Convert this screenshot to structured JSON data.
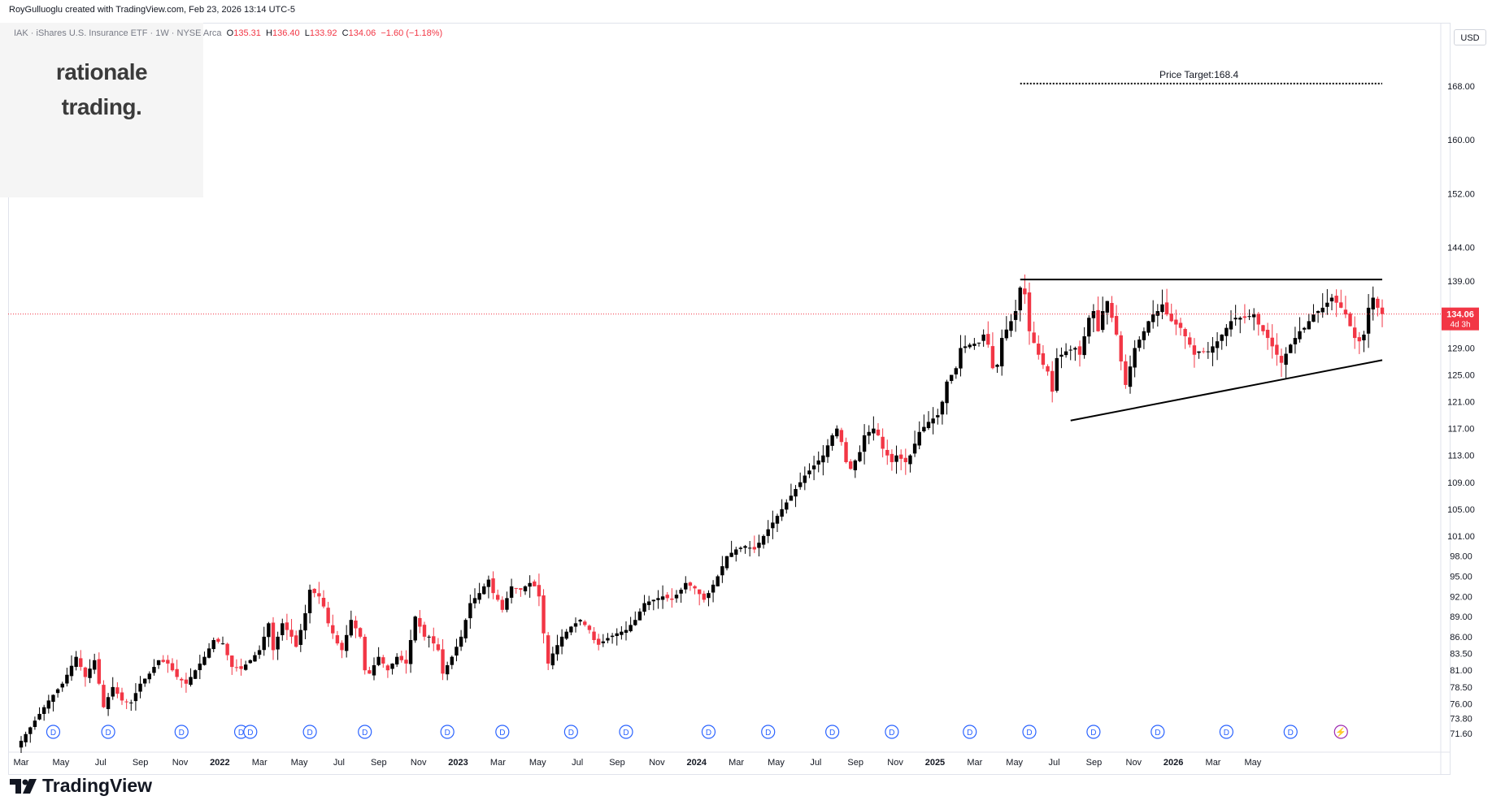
{
  "header": {
    "caption": "RoyGulluoglu created with TradingView.com, Feb 23, 2026 13:14 UTC-5"
  },
  "legend": {
    "symbol": "IAK · iShares U.S. Insurance ETF · 1W · NYSE Arca",
    "open_label": "O",
    "open": "135.31",
    "high_label": "H",
    "high": "136.40",
    "low_label": "L",
    "low": "133.92",
    "close_label": "C",
    "close": "134.06",
    "change": "−1.60 (−1.18%)"
  },
  "watermark": {
    "line1": "rationale",
    "line2": "trading."
  },
  "currency": "USD",
  "brand": {
    "name": "TradingView",
    "logo": "tradingview-logo-icon"
  },
  "colors": {
    "up": "#000000",
    "down": "#f23645",
    "price_line": "#f23645",
    "dividend": "#2962ff",
    "split": "#9c27b0"
  },
  "chart_data": {
    "type": "candlestick",
    "interval": "1W",
    "ylim": [
      70.5,
      176
    ],
    "y_ticks": [
      "168.00",
      "160.00",
      "152.00",
      "144.00",
      "139.00",
      "134.06",
      "129.00",
      "125.00",
      "121.00",
      "117.00",
      "113.00",
      "109.00",
      "105.00",
      "101.00",
      "98.00",
      "95.00",
      "92.00",
      "89.00",
      "86.00",
      "83.50",
      "81.00",
      "78.50",
      "76.00",
      "73.80",
      "71.60"
    ],
    "x_ticks": [
      {
        "label": "Mar",
        "bold": false
      },
      {
        "label": "May",
        "bold": false
      },
      {
        "label": "Jul",
        "bold": false
      },
      {
        "label": "Sep",
        "bold": false
      },
      {
        "label": "Nov",
        "bold": false
      },
      {
        "label": "2022",
        "bold": true
      },
      {
        "label": "Mar",
        "bold": false
      },
      {
        "label": "May",
        "bold": false
      },
      {
        "label": "Jul",
        "bold": false
      },
      {
        "label": "Sep",
        "bold": false
      },
      {
        "label": "Nov",
        "bold": false
      },
      {
        "label": "2023",
        "bold": true
      },
      {
        "label": "Mar",
        "bold": false
      },
      {
        "label": "May",
        "bold": false
      },
      {
        "label": "Jul",
        "bold": false
      },
      {
        "label": "Sep",
        "bold": false
      },
      {
        "label": "Nov",
        "bold": false
      },
      {
        "label": "2024",
        "bold": true
      },
      {
        "label": "Mar",
        "bold": false
      },
      {
        "label": "May",
        "bold": false
      },
      {
        "label": "Jul",
        "bold": false
      },
      {
        "label": "Sep",
        "bold": false
      },
      {
        "label": "Nov",
        "bold": false
      },
      {
        "label": "2025",
        "bold": true
      },
      {
        "label": "Mar",
        "bold": false
      },
      {
        "label": "May",
        "bold": false
      },
      {
        "label": "Jul",
        "bold": false
      },
      {
        "label": "Sep",
        "bold": false
      },
      {
        "label": "Nov",
        "bold": false
      },
      {
        "label": "2026",
        "bold": true
      },
      {
        "label": "Mar",
        "bold": false
      },
      {
        "label": "May",
        "bold": false
      }
    ],
    "last_price": {
      "value": 134.06,
      "label": "134.06",
      "countdown": "4d 3h"
    },
    "close_path": [
      [
        0,
        70.5
      ],
      [
        3,
        73.5
      ],
      [
        6,
        76.5
      ],
      [
        9,
        79
      ],
      [
        12,
        83
      ],
      [
        14,
        80
      ],
      [
        16,
        82.5
      ],
      [
        18,
        75.5
      ],
      [
        20,
        78.5
      ],
      [
        22,
        76.5
      ],
      [
        24,
        76.2
      ],
      [
        26,
        79
      ],
      [
        28,
        80.5
      ],
      [
        30,
        82.5
      ],
      [
        32,
        82
      ],
      [
        34,
        80
      ],
      [
        36,
        79
      ],
      [
        38,
        81
      ],
      [
        40,
        83
      ],
      [
        42,
        85.5
      ],
      [
        44,
        85
      ],
      [
        46,
        81.5
      ],
      [
        48,
        81.2
      ],
      [
        50,
        82.5
      ],
      [
        52,
        84
      ],
      [
        54,
        88
      ],
      [
        55,
        84
      ],
      [
        57,
        88
      ],
      [
        59,
        86
      ],
      [
        60,
        84.5
      ],
      [
        62,
        89.5
      ],
      [
        63,
        93
      ],
      [
        65,
        92
      ],
      [
        66,
        90.5
      ],
      [
        67,
        88
      ],
      [
        69,
        85
      ],
      [
        70,
        84
      ],
      [
        72,
        88.5
      ],
      [
        74,
        86
      ],
      [
        75,
        81
      ],
      [
        76,
        80.5
      ],
      [
        78,
        83
      ],
      [
        80,
        81
      ],
      [
        82,
        83
      ],
      [
        84,
        82
      ],
      [
        86,
        89
      ],
      [
        88,
        86
      ],
      [
        89,
        86
      ],
      [
        91,
        84
      ],
      [
        92,
        80.5
      ],
      [
        94,
        83
      ],
      [
        96,
        86
      ],
      [
        98,
        91
      ],
      [
        100,
        92.5
      ],
      [
        102,
        94.5
      ],
      [
        103,
        92.5
      ],
      [
        104,
        91.5
      ],
      [
        105,
        90
      ],
      [
        107,
        93.5
      ],
      [
        109,
        93
      ],
      [
        111,
        94
      ],
      [
        112,
        93.5
      ],
      [
        113,
        92
      ],
      [
        114,
        86.5
      ],
      [
        115,
        82
      ],
      [
        116,
        83.5
      ],
      [
        118,
        86
      ],
      [
        120,
        87.5
      ],
      [
        122,
        88.5
      ],
      [
        124,
        87
      ],
      [
        125,
        85.5
      ],
      [
        126,
        84.8
      ],
      [
        128,
        85.8
      ],
      [
        130,
        86.5
      ],
      [
        132,
        87
      ],
      [
        134,
        88.5
      ],
      [
        136,
        91
      ],
      [
        138,
        91.5
      ],
      [
        140,
        92
      ],
      [
        142,
        91.5
      ],
      [
        144,
        93
      ],
      [
        145,
        94
      ],
      [
        147,
        93.2
      ],
      [
        149,
        91.5
      ],
      [
        150,
        92.5
      ],
      [
        152,
        95
      ],
      [
        154,
        98
      ],
      [
        156,
        99
      ],
      [
        158,
        99.5
      ],
      [
        160,
        99
      ],
      [
        161,
        100
      ],
      [
        163,
        102
      ],
      [
        165,
        104
      ],
      [
        167,
        106
      ],
      [
        169,
        108
      ],
      [
        171,
        110
      ],
      [
        173,
        111.5
      ],
      [
        175,
        113
      ],
      [
        177,
        116
      ],
      [
        178,
        117
      ],
      [
        179,
        115
      ],
      [
        180,
        112
      ],
      [
        181,
        111
      ],
      [
        183,
        113.5
      ],
      [
        184,
        116
      ],
      [
        186,
        117
      ],
      [
        187,
        116
      ],
      [
        188,
        114
      ],
      [
        190,
        112
      ],
      [
        191,
        113
      ],
      [
        193,
        112
      ],
      [
        194,
        113
      ],
      [
        196,
        116.5
      ],
      [
        198,
        118
      ],
      [
        200,
        119
      ],
      [
        201,
        121
      ],
      [
        202,
        124
      ],
      [
        204,
        126
      ],
      [
        205,
        129
      ],
      [
        207,
        129.5
      ],
      [
        209,
        129.8
      ],
      [
        210,
        131
      ],
      [
        211,
        129.5
      ],
      [
        212,
        126
      ],
      [
        213,
        126.5
      ],
      [
        214,
        130.5
      ],
      [
        216,
        133
      ],
      [
        217,
        134.5
      ],
      [
        218,
        138
      ],
      [
        219,
        137
      ],
      [
        220,
        131.5
      ],
      [
        222,
        128
      ],
      [
        223,
        126.5
      ],
      [
        224,
        125.5
      ],
      [
        225,
        122.5
      ],
      [
        226,
        127.5
      ],
      [
        228,
        128.5
      ],
      [
        230,
        129
      ],
      [
        231,
        128
      ],
      [
        233,
        133.5
      ],
      [
        234,
        134.5
      ],
      [
        235,
        131.5
      ],
      [
        236,
        134.5
      ],
      [
        237,
        136
      ],
      [
        238,
        133.5
      ],
      [
        239,
        131
      ],
      [
        240,
        127
      ],
      [
        241,
        123.5
      ],
      [
        243,
        129
      ],
      [
        245,
        131.5
      ],
      [
        246,
        133
      ],
      [
        247,
        134
      ],
      [
        248,
        134.5
      ],
      [
        249,
        135.5
      ],
      [
        250,
        134
      ],
      [
        251,
        133
      ],
      [
        253,
        132
      ],
      [
        255,
        129.5
      ],
      [
        256,
        128
      ],
      [
        257,
        128.5
      ],
      [
        259,
        128.5
      ],
      [
        261,
        130
      ],
      [
        263,
        132
      ],
      [
        264,
        133
      ],
      [
        265,
        133.5
      ],
      [
        267,
        133.5
      ],
      [
        269,
        134
      ],
      [
        270,
        132.5
      ],
      [
        272,
        130.5
      ],
      [
        274,
        128
      ],
      [
        275,
        126.8
      ],
      [
        277,
        129.5
      ],
      [
        279,
        131.5
      ],
      [
        280,
        132
      ],
      [
        282,
        134
      ],
      [
        284,
        135
      ],
      [
        286,
        136.5
      ],
      [
        288,
        135
      ],
      [
        289,
        134
      ],
      [
        291,
        130.5
      ],
      [
        292,
        130
      ],
      [
        293,
        131
      ],
      [
        294,
        135
      ],
      [
        295,
        136.5
      ],
      [
        296,
        135
      ],
      [
        297,
        134.06
      ]
    ],
    "lines": [
      {
        "name": "resistance",
        "from": {
          "bar": 218,
          "value": 139.2
        },
        "to": {
          "bar": 297,
          "value": 139.2
        }
      },
      {
        "name": "support",
        "from": {
          "bar": 229,
          "value": 118.2
        },
        "to": {
          "bar": 297,
          "value": 127.2
        }
      },
      {
        "name": "target",
        "from": {
          "bar": 218,
          "value": 168.4
        },
        "to": {
          "bar": 297,
          "value": 168.4
        },
        "style": "dotted"
      }
    ],
    "annotations": [
      {
        "text": "Price Target:168.4",
        "bar": 257,
        "value": 168.4
      }
    ],
    "events": [
      {
        "type": "dividend",
        "label": "D",
        "bar": 7
      },
      {
        "type": "dividend",
        "label": "D",
        "bar": 19
      },
      {
        "type": "dividend",
        "label": "D",
        "bar": 35
      },
      {
        "type": "dividend",
        "label": "D",
        "bar": 48
      },
      {
        "type": "dividend",
        "label": "D",
        "bar": 50
      },
      {
        "type": "dividend",
        "label": "D",
        "bar": 63
      },
      {
        "type": "dividend",
        "label": "D",
        "bar": 75
      },
      {
        "type": "dividend",
        "label": "D",
        "bar": 93
      },
      {
        "type": "dividend",
        "label": "D",
        "bar": 105
      },
      {
        "type": "dividend",
        "label": "D",
        "bar": 120
      },
      {
        "type": "dividend",
        "label": "D",
        "bar": 132
      },
      {
        "type": "dividend",
        "label": "D",
        "bar": 150
      },
      {
        "type": "dividend",
        "label": "D",
        "bar": 163
      },
      {
        "type": "dividend",
        "label": "D",
        "bar": 177
      },
      {
        "type": "dividend",
        "label": "D",
        "bar": 190
      },
      {
        "type": "dividend",
        "label": "D",
        "bar": 207
      },
      {
        "type": "dividend",
        "label": "D",
        "bar": 220
      },
      {
        "type": "dividend",
        "label": "D",
        "bar": 234
      },
      {
        "type": "dividend",
        "label": "D",
        "bar": 248
      },
      {
        "type": "dividend",
        "label": "D",
        "bar": 263
      },
      {
        "type": "dividend",
        "label": "D",
        "bar": 277
      },
      {
        "type": "split",
        "label": "⚡",
        "bar": 288
      }
    ]
  }
}
